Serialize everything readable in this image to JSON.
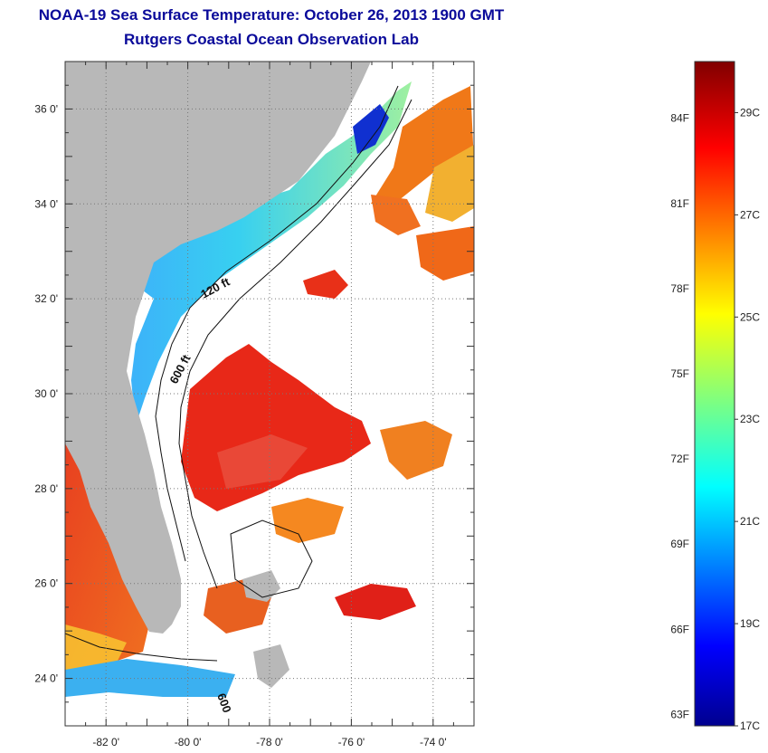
{
  "title": {
    "line1": "NOAA-19 Sea Surface Temperature:  October 26, 2013 1900 GMT",
    "line2": "Rutgers Coastal Ocean Observation Lab"
  },
  "map": {
    "lon_range": [
      -83,
      -73
    ],
    "lat_range": [
      23,
      37
    ],
    "lon_tick_labels": [
      {
        "lon": -82,
        "label": "-82 0'"
      },
      {
        "lon": -80,
        "label": "-80 0'"
      },
      {
        "lon": -78,
        "label": "-78 0'"
      },
      {
        "lon": -76,
        "label": "-76 0'"
      },
      {
        "lon": -74,
        "label": "-74 0'"
      }
    ],
    "lat_tick_labels": [
      {
        "lat": 36,
        "label": "36 0'"
      },
      {
        "lat": 34,
        "label": "34 0'"
      },
      {
        "lat": 32,
        "label": "32 0'"
      },
      {
        "lat": 30,
        "label": "30 0'"
      },
      {
        "lat": 28,
        "label": "28 0'"
      },
      {
        "lat": 26,
        "label": "26 0'"
      },
      {
        "lat": 24,
        "label": "24 0'"
      }
    ],
    "contour_labels": [
      "120 ft",
      "600 ft",
      "600"
    ],
    "colors": {
      "land": "#b8b8b8",
      "cloud": "#ffffff",
      "grid": "#777777"
    }
  },
  "colorbar": {
    "f_labels": [
      "84F",
      "81F",
      "78F",
      "75F",
      "72F",
      "69F",
      "66F",
      "63F"
    ],
    "c_labels": [
      "29C",
      "27C",
      "25C",
      "23C",
      "21C",
      "19C",
      "17C"
    ],
    "range_c": [
      17,
      30
    ]
  }
}
